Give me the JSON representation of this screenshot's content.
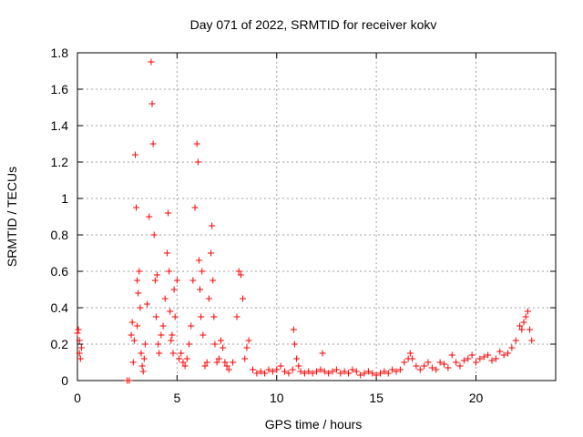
{
  "chart_data": {
    "type": "scatter",
    "title": "Day 071 of 2022, SRMTID for receiver kokv",
    "xlabel": "GPS time / hours",
    "ylabel": "SRMTID / TECUs",
    "xlim": [
      0,
      24
    ],
    "ylim": [
      0,
      1.8
    ],
    "x_ticks": [
      0,
      5,
      10,
      15,
      20
    ],
    "y_ticks": [
      0,
      0.2,
      0.4,
      0.6,
      0.8,
      1,
      1.2,
      1.4,
      1.6,
      1.8
    ],
    "x_tick_labels": [
      "0",
      "5",
      "10",
      "15",
      "20"
    ],
    "y_tick_labels": [
      "0",
      "0.2",
      "0.4",
      "0.6",
      "0.8",
      "1",
      "1.2",
      "1.4",
      "1.6",
      "1.8"
    ],
    "grid": true,
    "marker": "+",
    "color": "#ff0000",
    "series": [
      {
        "name": "SRMTID",
        "x": [
          0.0,
          0.05,
          0.1,
          0.1,
          0.15,
          0.2,
          2.5,
          2.6,
          2.7,
          2.75,
          2.8,
          2.85,
          2.9,
          2.95,
          3.0,
          3.0,
          3.05,
          3.1,
          3.15,
          3.2,
          3.25,
          3.3,
          3.35,
          3.4,
          3.5,
          3.6,
          3.7,
          3.75,
          3.8,
          3.85,
          3.9,
          3.95,
          4.0,
          4.05,
          4.1,
          4.2,
          4.3,
          4.4,
          4.5,
          4.55,
          4.6,
          4.65,
          4.7,
          4.75,
          4.8,
          4.85,
          4.9,
          5.0,
          5.1,
          5.2,
          5.3,
          5.4,
          5.5,
          5.6,
          5.7,
          5.8,
          5.9,
          6.0,
          6.05,
          6.1,
          6.15,
          6.2,
          6.25,
          6.3,
          6.4,
          6.5,
          6.6,
          6.7,
          6.75,
          6.8,
          6.85,
          6.9,
          7.0,
          7.1,
          7.2,
          7.3,
          7.4,
          7.5,
          7.6,
          7.8,
          8.0,
          8.1,
          8.2,
          8.3,
          8.4,
          8.5,
          8.6,
          8.8,
          9.0,
          9.2,
          9.4,
          9.6,
          9.8,
          10.0,
          10.2,
          10.4,
          10.6,
          10.8,
          10.85,
          10.9,
          11.0,
          11.1,
          11.2,
          11.4,
          11.6,
          11.8,
          12.0,
          12.2,
          12.3,
          12.4,
          12.6,
          12.8,
          13.0,
          13.2,
          13.4,
          13.6,
          13.8,
          14.0,
          14.2,
          14.4,
          14.6,
          14.8,
          15.0,
          15.2,
          15.4,
          15.6,
          15.8,
          16.0,
          16.2,
          16.4,
          16.6,
          16.7,
          16.8,
          17.0,
          17.2,
          17.4,
          17.6,
          17.8,
          18.0,
          18.2,
          18.4,
          18.6,
          18.8,
          19.0,
          19.2,
          19.4,
          19.6,
          19.8,
          20.0,
          20.2,
          20.4,
          20.6,
          20.8,
          21.0,
          21.2,
          21.4,
          21.6,
          21.8,
          22.0,
          22.2,
          22.3,
          22.4,
          22.5,
          22.6,
          22.7,
          22.8
        ],
        "y": [
          0.26,
          0.28,
          0.22,
          0.15,
          0.12,
          0.18,
          0.0,
          0.0,
          0.25,
          0.32,
          0.1,
          0.22,
          1.24,
          0.95,
          0.55,
          0.3,
          0.48,
          0.6,
          0.4,
          0.15,
          0.08,
          0.05,
          0.12,
          0.2,
          0.42,
          0.9,
          1.75,
          1.52,
          1.3,
          0.8,
          0.55,
          0.35,
          0.58,
          0.2,
          0.15,
          0.25,
          0.3,
          0.45,
          0.7,
          0.92,
          0.6,
          0.38,
          0.22,
          0.25,
          0.15,
          0.5,
          0.35,
          0.55,
          0.12,
          0.15,
          0.1,
          0.08,
          0.12,
          0.2,
          0.3,
          0.55,
          0.95,
          1.3,
          1.2,
          0.66,
          0.5,
          0.35,
          0.6,
          0.25,
          0.08,
          0.1,
          0.45,
          0.7,
          0.85,
          0.55,
          0.35,
          0.2,
          0.1,
          0.12,
          0.22,
          0.18,
          0.1,
          0.08,
          0.06,
          0.1,
          0.35,
          0.6,
          0.58,
          0.45,
          0.12,
          0.18,
          0.22,
          0.06,
          0.04,
          0.05,
          0.04,
          0.06,
          0.05,
          0.06,
          0.08,
          0.05,
          0.04,
          0.06,
          0.28,
          0.2,
          0.12,
          0.08,
          0.05,
          0.04,
          0.05,
          0.04,
          0.05,
          0.06,
          0.15,
          0.05,
          0.04,
          0.05,
          0.06,
          0.04,
          0.05,
          0.04,
          0.06,
          0.05,
          0.03,
          0.04,
          0.05,
          0.04,
          0.03,
          0.04,
          0.05,
          0.04,
          0.06,
          0.05,
          0.06,
          0.1,
          0.12,
          0.15,
          0.12,
          0.08,
          0.06,
          0.08,
          0.1,
          0.07,
          0.06,
          0.1,
          0.09,
          0.07,
          0.14,
          0.1,
          0.08,
          0.11,
          0.12,
          0.14,
          0.1,
          0.12,
          0.13,
          0.14,
          0.11,
          0.12,
          0.16,
          0.14,
          0.15,
          0.18,
          0.22,
          0.3,
          0.28,
          0.32,
          0.35,
          0.38,
          0.28,
          0.22
        ]
      }
    ]
  }
}
